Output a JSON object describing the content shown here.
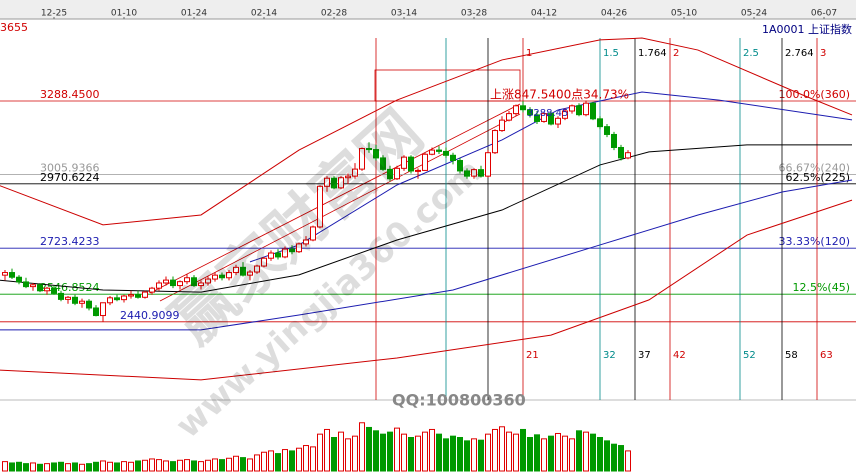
{
  "chart_data": {
    "type": "candlestick",
    "title": "1A0001  上证指数",
    "corner_label": "3655",
    "up_color": "#e00000",
    "down_color": "#009900",
    "xlim": [
      -1,
      121
    ],
    "ylim": [
      2160,
      3607
    ],
    "volume_lim": [
      0,
      100
    ],
    "date_ticks": [
      {
        "x": 7,
        "label": "12-25"
      },
      {
        "x": 17,
        "label": "01-10"
      },
      {
        "x": 27,
        "label": "01-24"
      },
      {
        "x": 37,
        "label": "02-14"
      },
      {
        "x": 47,
        "label": "02-28"
      },
      {
        "x": 57,
        "label": "03-14"
      },
      {
        "x": 67,
        "label": "03-28"
      },
      {
        "x": 77,
        "label": "04-12"
      },
      {
        "x": 87,
        "label": "04-26"
      },
      {
        "x": 97,
        "label": "05-10"
      },
      {
        "x": 107,
        "label": "05-24"
      },
      {
        "x": 117,
        "label": "06-07"
      }
    ],
    "ohlc": [
      [
        2620,
        2640,
        2600,
        2630
      ],
      [
        2630,
        2645,
        2605,
        2612
      ],
      [
        2612,
        2620,
        2585,
        2594
      ],
      [
        2594,
        2610,
        2570,
        2576
      ],
      [
        2576,
        2590,
        2560,
        2583
      ],
      [
        2583,
        2590,
        2555,
        2560
      ],
      [
        2560,
        2575,
        2545,
        2570
      ],
      [
        2570,
        2580,
        2545,
        2550
      ],
      [
        2550,
        2560,
        2520,
        2527
      ],
      [
        2527,
        2540,
        2510,
        2535
      ],
      [
        2535,
        2545,
        2505,
        2512
      ],
      [
        2512,
        2530,
        2495,
        2520
      ],
      [
        2520,
        2528,
        2485,
        2494
      ],
      [
        2494,
        2505,
        2462,
        2465
      ],
      [
        2465,
        2515,
        2441,
        2514
      ],
      [
        2514,
        2540,
        2505,
        2533
      ],
      [
        2533,
        2545,
        2520,
        2526
      ],
      [
        2526,
        2545,
        2515,
        2540
      ],
      [
        2540,
        2560,
        2530,
        2545
      ],
      [
        2545,
        2560,
        2530,
        2535
      ],
      [
        2535,
        2560,
        2530,
        2555
      ],
      [
        2555,
        2575,
        2545,
        2570
      ],
      [
        2570,
        2600,
        2560,
        2590
      ],
      [
        2590,
        2615,
        2580,
        2601
      ],
      [
        2601,
        2615,
        2570,
        2580
      ],
      [
        2580,
        2600,
        2565,
        2595
      ],
      [
        2595,
        2625,
        2585,
        2610
      ],
      [
        2610,
        2620,
        2575,
        2580
      ],
      [
        2580,
        2600,
        2565,
        2590
      ],
      [
        2590,
        2615,
        2580,
        2605
      ],
      [
        2605,
        2630,
        2595,
        2620
      ],
      [
        2620,
        2630,
        2600,
        2610
      ],
      [
        2610,
        2640,
        2600,
        2630
      ],
      [
        2630,
        2660,
        2620,
        2650
      ],
      [
        2650,
        2670,
        2615,
        2620
      ],
      [
        2620,
        2640,
        2600,
        2632
      ],
      [
        2632,
        2660,
        2625,
        2655
      ],
      [
        2655,
        2690,
        2650,
        2685
      ],
      [
        2685,
        2715,
        2675,
        2705
      ],
      [
        2705,
        2720,
        2680,
        2690
      ],
      [
        2690,
        2730,
        2685,
        2720
      ],
      [
        2720,
        2735,
        2700,
        2710
      ],
      [
        2710,
        2745,
        2705,
        2740
      ],
      [
        2740,
        2770,
        2730,
        2755
      ],
      [
        2755,
        2810,
        2750,
        2805
      ],
      [
        2805,
        2965,
        2800,
        2961
      ],
      [
        2961,
        3000,
        2940,
        2992
      ],
      [
        2992,
        3000,
        2950,
        2955
      ],
      [
        2955,
        3000,
        2950,
        2994
      ],
      [
        2994,
        3010,
        2970,
        3000
      ],
      [
        3000,
        3050,
        2990,
        3027
      ],
      [
        3027,
        3110,
        3020,
        3106
      ],
      [
        3106,
        3130,
        3090,
        3102
      ],
      [
        3102,
        3120,
        3060,
        3070
      ],
      [
        3070,
        3080,
        3020,
        3026
      ],
      [
        3026,
        3040,
        2980,
        2990
      ],
      [
        2990,
        3040,
        2985,
        3030
      ],
      [
        3030,
        3080,
        3020,
        3073
      ],
      [
        3073,
        3080,
        3010,
        3020
      ],
      [
        3020,
        3030,
        2990,
        3022
      ],
      [
        3022,
        3090,
        3020,
        3084
      ],
      [
        3084,
        3110,
        3080,
        3100
      ],
      [
        3100,
        3115,
        3085,
        3095
      ],
      [
        3095,
        3110,
        3070,
        3080
      ],
      [
        3080,
        3090,
        3045,
        3060
      ],
      [
        3060,
        3070,
        3010,
        3020
      ],
      [
        3020,
        3030,
        2990,
        3000
      ],
      [
        3000,
        3030,
        2990,
        3025
      ],
      [
        3025,
        3040,
        2995,
        3000
      ],
      [
        3000,
        3100,
        2995,
        3090
      ],
      [
        3090,
        3180,
        3085,
        3175
      ],
      [
        3175,
        3230,
        3170,
        3215
      ],
      [
        3215,
        3250,
        3210,
        3240
      ],
      [
        3240,
        3275,
        3230,
        3270
      ],
      [
        3270,
        3288,
        3245,
        3255
      ],
      [
        3255,
        3265,
        3225,
        3235
      ],
      [
        3235,
        3250,
        3200,
        3210
      ],
      [
        3210,
        3245,
        3205,
        3240
      ],
      [
        3240,
        3250,
        3195,
        3200
      ],
      [
        3200,
        3230,
        3185,
        3222
      ],
      [
        3222,
        3260,
        3215,
        3250
      ],
      [
        3250,
        3275,
        3240,
        3270
      ],
      [
        3270,
        3280,
        3230,
        3236
      ],
      [
        3236,
        3290,
        3230,
        3280
      ],
      [
        3280,
        3285,
        3215,
        3220
      ],
      [
        3220,
        3230,
        3180,
        3190
      ],
      [
        3190,
        3200,
        3150,
        3160
      ],
      [
        3160,
        3170,
        3100,
        3110
      ],
      [
        3110,
        3120,
        3060,
        3070
      ],
      [
        3070,
        3100,
        3065,
        3090
      ]
    ],
    "volume": [
      14,
      12,
      13,
      11,
      12,
      10,
      11,
      12,
      13,
      11,
      12,
      10,
      11,
      13,
      15,
      13,
      12,
      14,
      13,
      15,
      16,
      18,
      17,
      15,
      14,
      16,
      17,
      15,
      14,
      16,
      18,
      17,
      19,
      22,
      20,
      18,
      24,
      28,
      30,
      26,
      32,
      30,
      34,
      38,
      36,
      55,
      62,
      50,
      58,
      48,
      52,
      72,
      65,
      60,
      55,
      58,
      64,
      55,
      50,
      52,
      58,
      62,
      55,
      48,
      52,
      50,
      45,
      48,
      46,
      55,
      62,
      66,
      58,
      55,
      62,
      50,
      54,
      48,
      52,
      56,
      52,
      48,
      60,
      58,
      55,
      50,
      45,
      40,
      38,
      30
    ],
    "overlays": [
      {
        "color": "#cc0000",
        "x": [
          -1,
          14,
          28,
          42,
          56,
          71,
          85,
          91,
          99,
          114,
          121
        ],
        "values": [
          2966,
          2813,
          2851,
          3100,
          3292,
          3446,
          3523,
          3530,
          3484,
          3311,
          3235
        ]
      },
      {
        "color": "#000000",
        "x": [
          -1,
          14,
          28,
          42,
          56,
          71,
          85,
          92,
          106,
          121
        ],
        "values": [
          2601,
          2563,
          2555,
          2621,
          2755,
          2870,
          3043,
          3093,
          3120,
          3120
        ]
      },
      {
        "color": "#1c1cb0",
        "x": [
          -1,
          28,
          42,
          64,
          85,
          99,
          111,
          121
        ],
        "values": [
          2410,
          2410,
          2467,
          2563,
          2736,
          2851,
          2939,
          2985
        ]
      },
      {
        "color": "#1c1cb0",
        "x": [
          35,
          42,
          56,
          71,
          79,
          91,
          102,
          121
        ],
        "values": [
          2671,
          2736,
          2966,
          3139,
          3254,
          3323,
          3292,
          3216
        ]
      },
      {
        "color": "#cc0000",
        "x": [
          -1,
          28,
          56,
          78,
          92,
          106,
          121
        ],
        "values": [
          2256,
          2218,
          2302,
          2390,
          2525,
          2774,
          2908
        ]
      }
    ],
    "levels": [
      {
        "value": 3288.45,
        "label": "3288.4500",
        "ratio": "100.0%(360)",
        "color": "#d00000"
      },
      {
        "value": 3005.9366,
        "label": "3005.9366",
        "ratio": "66.67%(240)",
        "color": "#999999"
      },
      {
        "value": 2970.6224,
        "label": "2970.6224",
        "ratio": "62.5%(225)",
        "color": "#000000"
      },
      {
        "value": 2723.4233,
        "label": "2723.4233",
        "ratio": "33.33%(120)",
        "color": "#1c1cb0"
      },
      {
        "value": 2546.8524,
        "label": "2546.8524",
        "ratio": "12.5%(45)",
        "color": "#009900"
      },
      {
        "value": 2440.9099,
        "label": "2440.9099",
        "color": "#d00000",
        "label_color": "#1c1cb0"
      }
    ],
    "verticals": [
      {
        "x": 53,
        "color": "#d00000"
      },
      {
        "x": 63,
        "color": "#008b8b"
      },
      {
        "x": 69,
        "color": "#000000"
      },
      {
        "x": 74,
        "ratio": "1",
        "bar": "21",
        "color": "#d00000"
      },
      {
        "x": 85,
        "ratio": "1.5",
        "bar": "32",
        "color": "#008b8b"
      },
      {
        "x": 90,
        "ratio": "1.764",
        "bar": "37",
        "color": "#000000"
      },
      {
        "x": 95,
        "ratio": "2",
        "bar": "42",
        "color": "#d00000"
      },
      {
        "x": 105,
        "ratio": "2.5",
        "bar": "52",
        "color": "#008b8b"
      },
      {
        "x": 111,
        "ratio": "2.764",
        "bar": "58",
        "color": "#000000"
      },
      {
        "x": 116,
        "ratio": "3",
        "bar": "63",
        "color": "#d00000"
      }
    ],
    "annotations": {
      "rise": "上涨847.5400点34.73%",
      "high": "3288.45",
      "qq": "QQ:100800360"
    },
    "watermark": {
      "name": "赢家财富网",
      "url": "www.yingjia360.com"
    }
  }
}
